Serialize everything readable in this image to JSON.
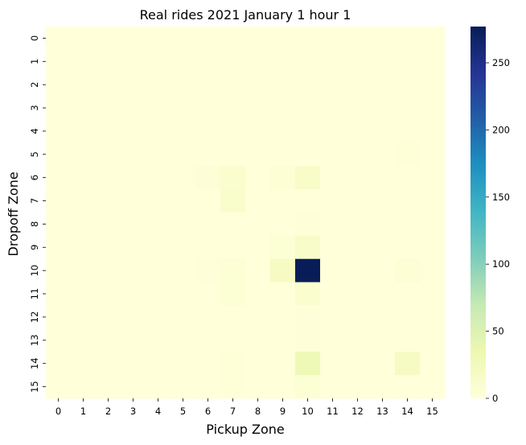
{
  "chart_data": {
    "type": "heatmap",
    "title": "Real rides 2021 January 1 hour 1",
    "xlabel": "Pickup Zone",
    "ylabel": "Dropoff Zone",
    "x_categories": [
      "0",
      "1",
      "2",
      "3",
      "4",
      "5",
      "6",
      "7",
      "8",
      "9",
      "10",
      "11",
      "12",
      "13",
      "14",
      "15"
    ],
    "y_categories": [
      "0",
      "1",
      "2",
      "3",
      "4",
      "5",
      "6",
      "7",
      "8",
      "9",
      "10",
      "11",
      "12",
      "13",
      "14",
      "15"
    ],
    "colormap": "YlGnBu",
    "vmin": 0,
    "vmax": 277,
    "colorbar_ticks": [
      "0",
      "50",
      "100",
      "150",
      "200",
      "250"
    ],
    "colorbar_tick_values": [
      0,
      50,
      100,
      150,
      200,
      250
    ],
    "values": [
      [
        0,
        0,
        0,
        0,
        0,
        0,
        0,
        0,
        0,
        0,
        0,
        0,
        0,
        0,
        0,
        0
      ],
      [
        0,
        0,
        0,
        0,
        0,
        0,
        0,
        0,
        0,
        0,
        0,
        0,
        0,
        0,
        0,
        0
      ],
      [
        0,
        0,
        0,
        0,
        0,
        0,
        0,
        0,
        0,
        0,
        0,
        0,
        0,
        0,
        0,
        0
      ],
      [
        0,
        0,
        0,
        0,
        0,
        0,
        0,
        0,
        0,
        0,
        0,
        0,
        0,
        0,
        0,
        0
      ],
      [
        0,
        0,
        0,
        0,
        0,
        0,
        0,
        0,
        0,
        0,
        0,
        0,
        0,
        0,
        0,
        0
      ],
      [
        0,
        0,
        0,
        0,
        0,
        0,
        0,
        0,
        0,
        0,
        0,
        0,
        0,
        0,
        2,
        0
      ],
      [
        0,
        0,
        0,
        0,
        0,
        0,
        3,
        10,
        0,
        4,
        15,
        0,
        0,
        0,
        0,
        0
      ],
      [
        0,
        0,
        0,
        0,
        0,
        0,
        0,
        12,
        0,
        0,
        0,
        0,
        0,
        0,
        0,
        0
      ],
      [
        0,
        0,
        0,
        0,
        0,
        0,
        0,
        0,
        0,
        0,
        1,
        0,
        0,
        0,
        0,
        0
      ],
      [
        0,
        0,
        0,
        0,
        0,
        0,
        0,
        0,
        0,
        5,
        15,
        0,
        0,
        0,
        0,
        0
      ],
      [
        0,
        0,
        0,
        0,
        0,
        0,
        1,
        5,
        0,
        20,
        277,
        0,
        0,
        0,
        5,
        0
      ],
      [
        0,
        0,
        0,
        0,
        0,
        0,
        0,
        5,
        0,
        0,
        10,
        0,
        0,
        0,
        0,
        0
      ],
      [
        0,
        0,
        0,
        0,
        0,
        0,
        0,
        0,
        0,
        0,
        1,
        0,
        0,
        0,
        0,
        0
      ],
      [
        0,
        0,
        0,
        0,
        0,
        0,
        0,
        0,
        0,
        0,
        1,
        0,
        0,
        0,
        0,
        0
      ],
      [
        0,
        0,
        0,
        0,
        0,
        0,
        0,
        2,
        0,
        0,
        30,
        0,
        0,
        0,
        20,
        0
      ],
      [
        0,
        0,
        0,
        0,
        0,
        0,
        0,
        2,
        0,
        0,
        5,
        0,
        0,
        0,
        0,
        0
      ]
    ]
  }
}
